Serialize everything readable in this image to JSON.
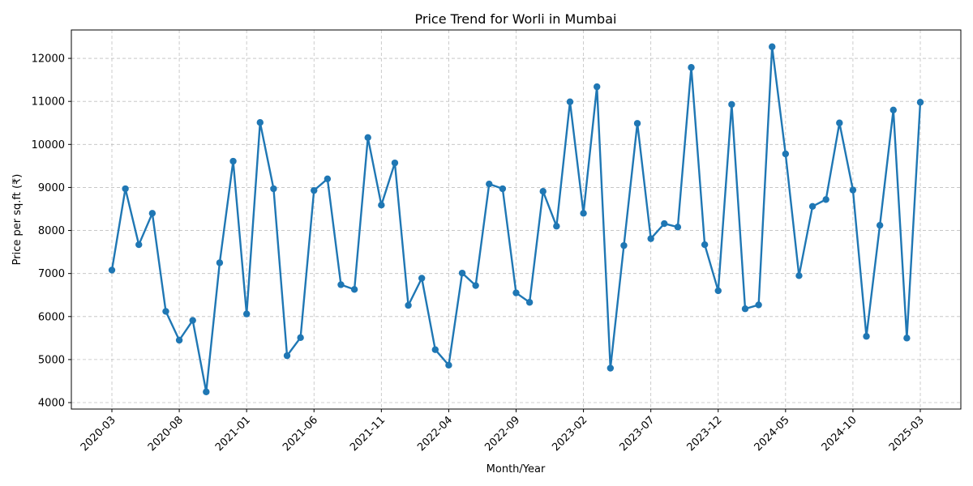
{
  "chart_data": {
    "type": "line",
    "title": "Price Trend for Worli in Mumbai",
    "xlabel": "Month/Year",
    "ylabel": "Price per sq.ft (₹)",
    "grid": true,
    "ylim": [
      3850,
      12660
    ],
    "yticks": [
      4000,
      5000,
      6000,
      7000,
      8000,
      9000,
      10000,
      11000,
      12000
    ],
    "xticks": [
      "2020-03",
      "2020-08",
      "2021-01",
      "2021-06",
      "2021-11",
      "2022-04",
      "2022-09",
      "2023-02",
      "2023-07",
      "2023-12",
      "2024-05",
      "2024-10",
      "2025-03"
    ],
    "x": [
      "2020-03",
      "2020-04",
      "2020-05",
      "2020-06",
      "2020-07",
      "2020-08",
      "2020-09",
      "2020-10",
      "2020-11",
      "2020-12",
      "2021-01",
      "2021-02",
      "2021-03",
      "2021-04",
      "2021-05",
      "2021-06",
      "2021-07",
      "2021-08",
      "2021-09",
      "2021-10",
      "2021-11",
      "2021-12",
      "2022-01",
      "2022-02",
      "2022-03",
      "2022-04",
      "2022-05",
      "2022-06",
      "2022-07",
      "2022-08",
      "2022-09",
      "2022-10",
      "2022-11",
      "2022-12",
      "2023-01",
      "2023-02",
      "2023-03",
      "2023-04",
      "2023-05",
      "2023-06",
      "2023-07",
      "2023-08",
      "2023-09",
      "2023-10",
      "2023-11",
      "2023-12",
      "2024-01",
      "2024-02",
      "2024-03",
      "2024-04",
      "2024-05",
      "2024-06",
      "2024-07",
      "2024-08",
      "2024-09",
      "2024-10",
      "2024-11",
      "2024-12",
      "2025-01",
      "2025-02",
      "2025-03"
    ],
    "series": [
      {
        "color": "#1f77b4",
        "values": [
          7080,
          8970,
          7670,
          8400,
          6120,
          5450,
          5910,
          4250,
          7250,
          9610,
          6060,
          10510,
          8970,
          5090,
          5510,
          8930,
          9200,
          6740,
          6630,
          10160,
          8590,
          9570,
          6260,
          6890,
          5230,
          4870,
          7010,
          6720,
          9080,
          8970,
          6550,
          6330,
          8910,
          8100,
          10990,
          8400,
          11340,
          4800,
          7650,
          10490,
          7810,
          8160,
          8080,
          11790,
          7670,
          6600,
          10930,
          6180,
          6270,
          12270,
          9780,
          6950,
          8560,
          8720,
          10500,
          8940,
          5540,
          8120,
          10800,
          5500,
          10980
        ]
      }
    ]
  }
}
